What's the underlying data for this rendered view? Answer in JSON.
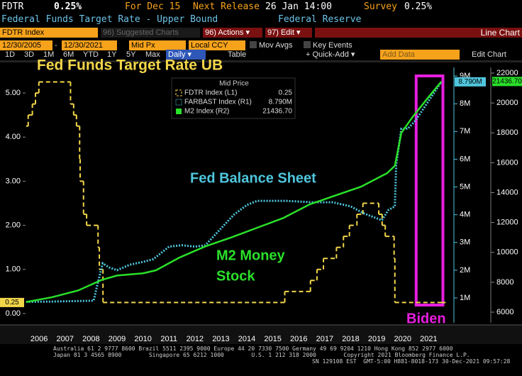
{
  "header": {
    "ticker": "FDTR",
    "value": "0.25%",
    "for_label": "For Dec 15",
    "next_release_label": "Next Release",
    "next_release": "26 Jan 14:00",
    "survey_label": "Survey",
    "survey": "0.25%",
    "description": "Federal Funds Target Rate - Upper Bound",
    "source": "Federal Reserve"
  },
  "toolbar": {
    "security": "FDTR Index",
    "suggested": "96) Suggested Charts",
    "actions": "96) Actions ▾",
    "edit": "97) Edit ▾",
    "chart_type": "Line Chart",
    "start_date": "12/30/2005",
    "date_separator": "-",
    "end_date": "12/30/2021",
    "price": "Mid Px",
    "currency": "Local CCY",
    "mov_avgs": "Mov Avgs",
    "key_events": "Key Events",
    "periods": [
      "1D",
      "3D",
      "1M",
      "6M",
      "YTD",
      "1Y",
      "5Y",
      "Max"
    ],
    "frequency": "Daily ▾",
    "table": "Table",
    "quick_add": "+ Quick-Add ▾",
    "add_data": "Add Data",
    "edit_chart": "Edit Chart"
  },
  "chart_data": {
    "type": "line",
    "title": "Fed Funds Target Rate UB",
    "legend_title": "Mid Price",
    "annotations": [
      "Fed Balance Sheet",
      "M2 Money",
      "Stock",
      "Biden"
    ],
    "highlight": {
      "x": [
        2021.02,
        2022.05
      ],
      "color": "#e81ee0"
    },
    "xlim": [
      2005.95,
      2022.31
    ],
    "xticks": [
      {
        "value": 2006.5,
        "label": "2006"
      },
      {
        "value": 2007.5,
        "label": "2007"
      },
      {
        "value": 2008.5,
        "label": "2008"
      },
      {
        "value": 2009.5,
        "label": "2009"
      },
      {
        "value": 2010.5,
        "label": "2010"
      },
      {
        "value": 2011.5,
        "label": "2011"
      },
      {
        "value": 2012.5,
        "label": "2012"
      },
      {
        "value": 2013.5,
        "label": "2013"
      },
      {
        "value": 2014.5,
        "label": "2014"
      },
      {
        "value": 2015.5,
        "label": "2015"
      },
      {
        "value": 2016.5,
        "label": "2016"
      },
      {
        "value": 2017.5,
        "label": "2017"
      },
      {
        "value": 2018.5,
        "label": "2018"
      },
      {
        "value": 2019.5,
        "label": "2019"
      },
      {
        "value": 2020.5,
        "label": "2020"
      },
      {
        "value": 2021.5,
        "label": "2021"
      }
    ],
    "ylim": [
      -0.21,
      5.58
    ],
    "yticks": [
      {
        "value": 0,
        "label": "0.00"
      },
      {
        "value": 1,
        "label": "1.00"
      },
      {
        "value": 2,
        "label": "2.00"
      },
      {
        "value": 3,
        "label": "3.00"
      },
      {
        "value": 4,
        "label": "4.00"
      },
      {
        "value": 5,
        "label": "5.00"
      }
    ],
    "y2lim": [
      0.105,
      9.31
    ],
    "y2ticks": [
      {
        "value": 1,
        "label": "1M"
      },
      {
        "value": 2,
        "label": "2M"
      },
      {
        "value": 3,
        "label": "3M"
      },
      {
        "value": 4,
        "label": "4M"
      },
      {
        "value": 5,
        "label": "5M"
      },
      {
        "value": 6,
        "label": "6M"
      },
      {
        "value": 7,
        "label": "7M"
      },
      {
        "value": 8,
        "label": "8M"
      },
      {
        "value": 9,
        "label": "9M"
      }
    ],
    "y3lim": [
      5288,
      22380
    ],
    "y3ticks": [
      6000,
      8000,
      10000,
      12000,
      14000,
      16000,
      18000,
      20000,
      22000
    ],
    "grid": false,
    "series": [
      {
        "name": "FDTR Index (L1)",
        "color": "#f2d64a",
        "step": true,
        "x": [
          2006.0,
          2006.08,
          2006.24,
          2006.36,
          2006.49,
          2007.71,
          2007.83,
          2007.94,
          2008.06,
          2008.08,
          2008.21,
          2008.33,
          2008.77,
          2008.82,
          2008.96,
          2015.96,
          2016.95,
          2017.2,
          2017.45,
          2017.95,
          2018.22,
          2018.45,
          2018.74,
          2018.97,
          2019.58,
          2019.71,
          2019.83,
          2020.17,
          2020.2,
          2021.99
        ],
        "values": [
          4.25,
          4.5,
          4.75,
          5,
          5.25,
          4.75,
          4.5,
          4.25,
          3.5,
          3,
          2.25,
          2,
          1.5,
          1,
          0.25,
          0.5,
          0.75,
          1,
          1.25,
          1.5,
          1.75,
          2,
          2.25,
          2.5,
          2.25,
          2,
          1.75,
          1.25,
          0.25,
          0.25
        ],
        "value_labels": [
          null,
          null,
          null,
          null,
          null,
          null,
          null,
          null,
          null,
          null,
          null,
          null,
          null,
          null,
          null,
          null,
          null,
          null,
          null,
          null,
          null,
          null,
          null,
          null,
          null,
          null,
          null,
          null,
          null,
          "0.25"
        ]
      },
      {
        "name": "FARBAST Index (R1)",
        "color": "#4fc6dd",
        "axis": "y2",
        "x": [
          2006.0,
          2007.0,
          2008.0,
          2008.6,
          2008.75,
          2008.95,
          2009.2,
          2009.5,
          2010.0,
          2010.5,
          2010.9,
          2011.5,
          2012.0,
          2012.5,
          2012.9,
          2013.5,
          2014.0,
          2014.5,
          2014.9,
          2016.0,
          2017.0,
          2017.8,
          2018.5,
          2019.0,
          2019.7,
          2019.95,
          2020.2,
          2020.25,
          2020.45,
          2020.7,
          2021.0,
          2021.5,
          2021.99
        ],
        "values": [
          0.86,
          0.87,
          0.89,
          0.9,
          1.5,
          2.25,
          2.1,
          2.0,
          2.2,
          2.3,
          2.4,
          2.85,
          2.9,
          2.85,
          2.9,
          3.5,
          4.0,
          4.35,
          4.5,
          4.5,
          4.45,
          4.45,
          4.3,
          4.05,
          3.8,
          4.17,
          4.3,
          5.8,
          7.1,
          7.1,
          7.4,
          8.1,
          8.79
        ],
        "value_labels": [
          null,
          null,
          null,
          null,
          null,
          null,
          null,
          null,
          null,
          null,
          null,
          null,
          null,
          null,
          null,
          null,
          null,
          null,
          null,
          null,
          null,
          null,
          null,
          null,
          null,
          null,
          null,
          null,
          null,
          null,
          null,
          null,
          "8.790M"
        ]
      },
      {
        "name": "M2 Index (R2)",
        "color": "#2ae02a",
        "axis": "y3",
        "x": [
          2006.0,
          2007.0,
          2008.0,
          2008.9,
          2009.5,
          2010.5,
          2011.0,
          2011.9,
          2012.9,
          2013.9,
          2014.9,
          2015.9,
          2016.9,
          2017.9,
          2018.9,
          2019.9,
          2020.2,
          2020.45,
          2020.9,
          2021.5,
          2021.99
        ],
        "values": [
          6680,
          7000,
          7450,
          8150,
          8450,
          8600,
          8800,
          9650,
          10400,
          11000,
          11650,
          12300,
          13200,
          13800,
          14400,
          15300,
          15800,
          18000,
          19100,
          20400,
          21436.7
        ],
        "value_labels": [
          null,
          null,
          null,
          null,
          null,
          null,
          null,
          null,
          null,
          null,
          null,
          null,
          null,
          null,
          null,
          null,
          null,
          null,
          null,
          null,
          "21436.70"
        ]
      }
    ]
  },
  "footer": {
    "line1": "Australia 61 2 9777 8600 Brazil 5511 2395 9000 Europe 44 20 7330 7500 Germany 49 69 9204 1210 Hong Kong 852 2977 6000",
    "line2": "Japan 81 3 4565 8900        Singapore 65 6212 1000        U.S. 1 212 318 2000        Copyright 2021 Bloomberg Finance L.P.",
    "line3": "SN 129108 EST  GMT-5:00 H881-8018-173 30-Dec-2021 09:57:28"
  }
}
